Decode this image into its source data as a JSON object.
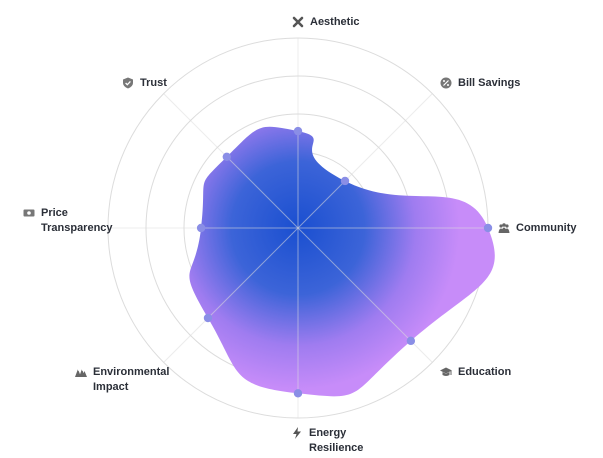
{
  "chart_data": {
    "type": "radar",
    "title": "",
    "axes": [
      {
        "label": "Aesthetic",
        "icon": "close-x-icon"
      },
      {
        "label": "Bill Savings",
        "icon": "percent-badge-icon"
      },
      {
        "label": "Community",
        "icon": "people-icon"
      },
      {
        "label": "Education",
        "icon": "graduation-cap-icon"
      },
      {
        "label": "Energy\nResilience",
        "icon": "lightning-bolt-icon"
      },
      {
        "label": "Environmental\nImpact",
        "icon": "mountain-icon"
      },
      {
        "label": "Price\nTransparency",
        "icon": "cash-icon"
      },
      {
        "label": "Trust",
        "icon": "shield-check-icon"
      }
    ],
    "series": [
      {
        "values": [
          0.51,
          0.35,
          1.0,
          0.84,
          0.87,
          0.67,
          0.51,
          0.53
        ]
      }
    ],
    "rings": 5,
    "range": [
      0,
      1
    ],
    "grid": true,
    "colors": {
      "fill_center": "#1a4fd0",
      "fill_outer": "#c78cf9",
      "point": "#8a8ee6",
      "grid": "#dcdcdc"
    }
  }
}
